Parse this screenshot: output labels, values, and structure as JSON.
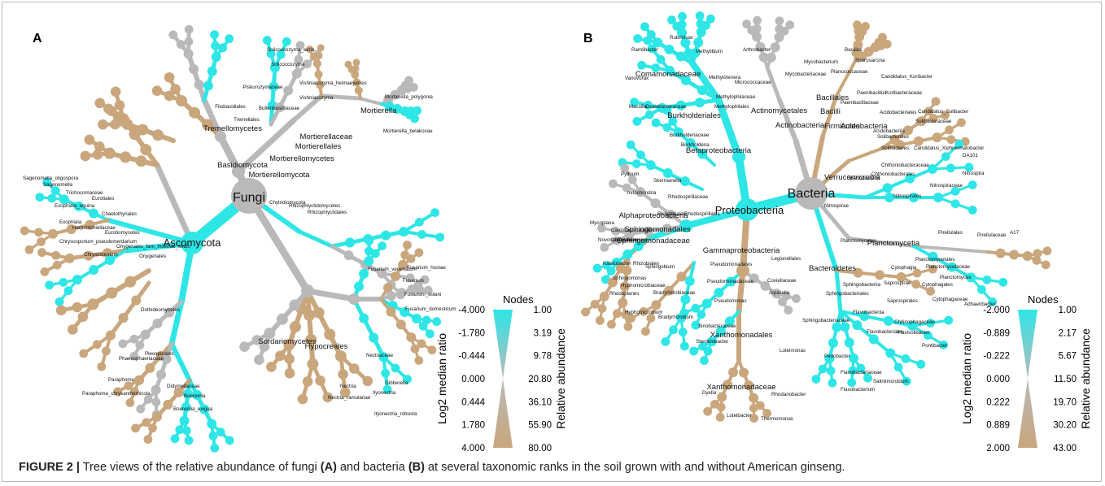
{
  "caption": {
    "label": "FIGURE 2 |",
    "text_1": " Tree views of the relative abundance of fungi ",
    "ref_a": "(A)",
    "text_2": " and bacteria ",
    "ref_b": "(B)",
    "text_3": " at several taxonomic ranks in the soil grown with and without American ginseng."
  },
  "colors": {
    "low": "#2ee6e6",
    "mid": "#b9b9b9",
    "high": "#c9a67c",
    "branch_tan": "#c8aa86"
  },
  "panels": [
    {
      "id": "A",
      "legend": {
        "title": "Nodes",
        "left_title": "Log2 median ratio",
        "right_title": "Relative abundance",
        "left_ticks": [
          "-4.000",
          "-1.780",
          "-0.444",
          "0.000",
          "0.444",
          "1.780",
          "4.000"
        ],
        "right_ticks": [
          "1.00",
          "3.19",
          "9.78",
          "20.80",
          "36.10",
          "55.90",
          "80.00"
        ]
      },
      "nodes": [
        {
          "label": "Fungi",
          "size": "root"
        },
        {
          "label": "Ascomycota",
          "size": "big"
        },
        {
          "label": "Basidiomycota",
          "size": "mid"
        },
        {
          "label": "Mortierellomycota",
          "size": "mid"
        },
        {
          "label": "Mortierellomycetes",
          "size": "mid"
        },
        {
          "label": "Mortierellales",
          "size": "mid"
        },
        {
          "label": "Mortierellaceae",
          "size": "mid"
        },
        {
          "label": "Mortierella",
          "size": "mid"
        },
        {
          "label": "Mortierella_polygonia",
          "size": "small"
        },
        {
          "label": "Mortierella_belakovae",
          "size": "small"
        },
        {
          "label": "Tremellomycetes",
          "size": "mid"
        },
        {
          "label": "Tremellales",
          "size": "small"
        },
        {
          "label": "Filobasidiales",
          "size": "small"
        },
        {
          "label": "Bulleribasidiaceae",
          "size": "small"
        },
        {
          "label": "Piskurozymaceae",
          "size": "small"
        },
        {
          "label": "Solicoccozyma",
          "size": "small"
        },
        {
          "label": "Solicoccozyma_aeria",
          "size": "small"
        },
        {
          "label": "Vishniacozyma_heimaeyensis",
          "size": "small"
        },
        {
          "label": "Vishniacozyma",
          "size": "small"
        },
        {
          "label": "Chytridiomycota",
          "size": "small"
        },
        {
          "label": "Rhizophlyctidomycetes",
          "size": "small"
        },
        {
          "label": "Rhizophlyctidales",
          "size": "small"
        },
        {
          "label": "Sagenomella_oligospora",
          "size": "small"
        },
        {
          "label": "Sagenomella",
          "size": "small"
        },
        {
          "label": "Trichocomaceae",
          "size": "small"
        },
        {
          "label": "Eurotiales",
          "size": "small"
        },
        {
          "label": "Exophiala_equina",
          "size": "small"
        },
        {
          "label": "Chaetothyriales",
          "size": "small"
        },
        {
          "label": "Exophiala",
          "size": "small"
        },
        {
          "label": "Herpotrichiellaceae",
          "size": "small"
        },
        {
          "label": "Eurotiomycetes",
          "size": "small"
        },
        {
          "label": "Chrysosporium_pseudomerdarium",
          "size": "small"
        },
        {
          "label": "Onygenales_fam_Incertae_sedis",
          "size": "small"
        },
        {
          "label": "Chrysosporium",
          "size": "small"
        },
        {
          "label": "Onygenales",
          "size": "small"
        },
        {
          "label": "Dothideomycetes",
          "size": "small"
        },
        {
          "label": "Pleosporales",
          "size": "small"
        },
        {
          "label": "Phaeosphaeriaceae",
          "size": "small"
        },
        {
          "label": "Paraphoma",
          "size": "small"
        },
        {
          "label": "Paraphoma_chrysanthemicola",
          "size": "small"
        },
        {
          "label": "Didymellaceae",
          "size": "small"
        },
        {
          "label": "Boeremia",
          "size": "small"
        },
        {
          "label": "Boeremia_exigua",
          "size": "small"
        },
        {
          "label": "Sordariomycetes",
          "size": "mid"
        },
        {
          "label": "Hypocreales",
          "size": "mid"
        },
        {
          "label": "Nectriaceae",
          "size": "small"
        },
        {
          "label": "Fusarium_venenatum",
          "size": "small"
        },
        {
          "label": "Fusarium_hostae",
          "size": "small"
        },
        {
          "label": "Fusarium",
          "size": "small"
        },
        {
          "label": "Fusarium_solani",
          "size": "small"
        },
        {
          "label": "Fusarium_domesticum",
          "size": "small"
        },
        {
          "label": "Nectria",
          "size": "small"
        },
        {
          "label": "Gibberella",
          "size": "small"
        },
        {
          "label": "Ilyonectria",
          "size": "small"
        },
        {
          "label": "Nectria_ramulariae",
          "size": "small"
        },
        {
          "label": "Ilyonectria_robusta",
          "size": "small"
        }
      ]
    },
    {
      "id": "B",
      "legend": {
        "title": "Nodes",
        "left_title": "Log2 median ratio",
        "right_title": "Relative abundance",
        "left_ticks": [
          "-2.000",
          "-0.889",
          "-0.222",
          "0.000",
          "0.222",
          "0.889",
          "2.000"
        ],
        "right_ticks": [
          "1.00",
          "2.17",
          "5.67",
          "11.50",
          "19.70",
          "30.20",
          "43.00"
        ]
      },
      "nodes": [
        {
          "label": "Bacteria",
          "size": "root"
        },
        {
          "label": "Proteobacteria",
          "size": "big"
        },
        {
          "label": "Betaproteobacteria",
          "size": "mid"
        },
        {
          "label": "Burkholderiales",
          "size": "mid"
        },
        {
          "label": "Comamonadaceae",
          "size": "mid"
        },
        {
          "label": "Rubrivivax",
          "size": "small"
        },
        {
          "label": "Ramlibacter",
          "size": "small"
        },
        {
          "label": "Variovorax",
          "size": "small"
        },
        {
          "label": "Methylibium",
          "size": "small"
        },
        {
          "label": "Methylotenera",
          "size": "small"
        },
        {
          "label": "Methylophilaceae",
          "size": "small"
        },
        {
          "label": "Methylophilales",
          "size": "small"
        },
        {
          "label": "Massilia",
          "size": "small"
        },
        {
          "label": "Oxalobacteraceae",
          "size": "small"
        },
        {
          "label": "Burkholderiaceae",
          "size": "small"
        },
        {
          "label": "Burkholderia",
          "size": "small"
        },
        {
          "label": "Alphaproteobacteria",
          "size": "mid"
        },
        {
          "label": "Sphingomonadales",
          "size": "mid"
        },
        {
          "label": "Sphingomonadaceae",
          "size": "mid"
        },
        {
          "label": "Kaistobacter",
          "size": "small"
        },
        {
          "label": "Sphingobium",
          "size": "small"
        },
        {
          "label": "Sphingomonas",
          "size": "small"
        },
        {
          "label": "Novosphingobium",
          "size": "small"
        },
        {
          "label": "Mycoplana",
          "size": "small"
        },
        {
          "label": "Caulobacteraceae",
          "size": "small"
        },
        {
          "label": "Caulobacterales",
          "size": "small"
        },
        {
          "label": "Rickettsiales",
          "size": "small"
        },
        {
          "label": "Rhodospirillales",
          "size": "small"
        },
        {
          "label": "Rhodospirillaceae",
          "size": "small"
        },
        {
          "label": "Skermanella",
          "size": "small"
        },
        {
          "label": "Pythium",
          "size": "small"
        },
        {
          "label": "mitochondria",
          "size": "small"
        },
        {
          "label": "Rhizobiales",
          "size": "small"
        },
        {
          "label": "Hyphomicrobiaceae",
          "size": "small"
        },
        {
          "label": "Rhodoplanes",
          "size": "small"
        },
        {
          "label": "Bradyrhizobiaceae",
          "size": "small"
        },
        {
          "label": "Hyphomicrobium",
          "size": "small"
        },
        {
          "label": "Bradyrhizobium",
          "size": "small"
        },
        {
          "label": "Gammaproteobacteria",
          "size": "mid"
        },
        {
          "label": "Pseudomonadales",
          "size": "small"
        },
        {
          "label": "Pseudomonadaceae",
          "size": "small"
        },
        {
          "label": "Pseudomonas",
          "size": "small"
        },
        {
          "label": "Legionellales",
          "size": "small"
        },
        {
          "label": "Coxiellaceae",
          "size": "small"
        },
        {
          "label": "Aquicella",
          "size": "small"
        },
        {
          "label": "Xanthomonadales",
          "size": "mid"
        },
        {
          "label": "Sinobacteraceae",
          "size": "small"
        },
        {
          "label": "Steroidobacter",
          "size": "small"
        },
        {
          "label": "Luteimonas",
          "size": "small"
        },
        {
          "label": "Xanthomonadaceae",
          "size": "mid"
        },
        {
          "label": "Dyella",
          "size": "small"
        },
        {
          "label": "Rhodanobacter",
          "size": "small"
        },
        {
          "label": "Luteibacter",
          "size": "small"
        },
        {
          "label": "Thermomonas",
          "size": "small"
        },
        {
          "label": "Actinobacteria",
          "size": "mid"
        },
        {
          "label": "Actinomycetales",
          "size": "mid"
        },
        {
          "label": "Micrococcaceae",
          "size": "small"
        },
        {
          "label": "Arthrobacter",
          "size": "small"
        },
        {
          "label": "Mycobacterium",
          "size": "small"
        },
        {
          "label": "Mycobacteriaceae",
          "size": "small"
        },
        {
          "label": "Firmicutes",
          "size": "mid"
        },
        {
          "label": "Bacilli",
          "size": "mid"
        },
        {
          "label": "Bacillales",
          "size": "mid"
        },
        {
          "label": "Bacillus",
          "size": "small"
        },
        {
          "label": "Sporosarcina",
          "size": "small"
        },
        {
          "label": "Planococcaceae",
          "size": "small"
        },
        {
          "label": "Paenibacillus",
          "size": "small"
        },
        {
          "label": "Paenibacillaceae",
          "size": "small"
        },
        {
          "label": "Candidatus_Koribacter",
          "size": "small"
        },
        {
          "label": "Koribacteraceae",
          "size": "small"
        },
        {
          "label": "Acidobacteriales",
          "size": "small"
        },
        {
          "label": "Acidobacteria",
          "size": "mid"
        },
        {
          "label": "Acidobacteriia",
          "size": "small"
        },
        {
          "label": "Candidatus_Solibacter",
          "size": "small"
        },
        {
          "label": "Solibacteraceae",
          "size": "small"
        },
        {
          "label": "Solibacterales",
          "size": "small"
        },
        {
          "label": "Solibacteres",
          "size": "small"
        },
        {
          "label": "Candidatus_Xiphinematobacter",
          "size": "small"
        },
        {
          "label": "DA101",
          "size": "small"
        },
        {
          "label": "Chthoniobacteraceae",
          "size": "small"
        },
        {
          "label": "Chthoniobacterales",
          "size": "small"
        },
        {
          "label": "Spartobacteria",
          "size": "small"
        },
        {
          "label": "Verrucomicrobia",
          "size": "mid"
        },
        {
          "label": "Nitrospira",
          "size": "small"
        },
        {
          "label": "Nitrospiraceae",
          "size": "small"
        },
        {
          "label": "Nitrospirales",
          "size": "small"
        },
        {
          "label": "Nitrospirae",
          "size": "small"
        },
        {
          "label": "Planctomycetes",
          "size": "small"
        },
        {
          "label": "Planctomycetia",
          "size": "mid"
        },
        {
          "label": "Pirellulales",
          "size": "small"
        },
        {
          "label": "Pirellulaceae",
          "size": "small"
        },
        {
          "label": "A17",
          "size": "small"
        },
        {
          "label": "Planctomycetales",
          "size": "small"
        },
        {
          "label": "Planctomycetaceae",
          "size": "small"
        },
        {
          "label": "Planctomyces",
          "size": "small"
        },
        {
          "label": "Bacteroidetes",
          "size": "mid"
        },
        {
          "label": "Cytophagia",
          "size": "small"
        },
        {
          "label": "Cytophagales",
          "size": "small"
        },
        {
          "label": "Cytophagaceae",
          "size": "small"
        },
        {
          "label": "Adhaeribacter",
          "size": "small"
        },
        {
          "label": "Sphingobacteriia",
          "size": "small"
        },
        {
          "label": "Saprospirae",
          "size": "small"
        },
        {
          "label": "Saprospirales",
          "size": "small"
        },
        {
          "label": "Sphingobacteriales",
          "size": "small"
        },
        {
          "label": "Flavobacteriia",
          "size": "small"
        },
        {
          "label": "Chitinophagaceae",
          "size": "small"
        },
        {
          "label": "Flavisolibacter",
          "size": "small"
        },
        {
          "label": "Sphingobacteriaceae",
          "size": "small"
        },
        {
          "label": "Flavobacteriales",
          "size": "small"
        },
        {
          "label": "Pontibacter",
          "size": "small"
        },
        {
          "label": "Pedobacter",
          "size": "small"
        },
        {
          "label": "Flavobacteriaceae",
          "size": "small"
        },
        {
          "label": "Salinimicrobium",
          "size": "small"
        },
        {
          "label": "Flavobacterium",
          "size": "small"
        }
      ]
    }
  ]
}
